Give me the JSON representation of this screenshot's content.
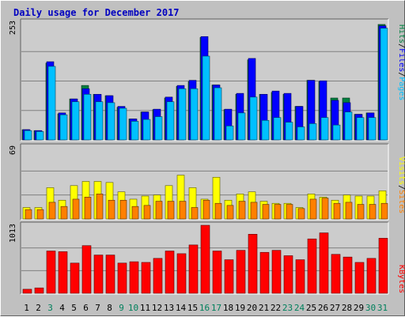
{
  "colors": {
    "background": "#c0c0c0",
    "panel": "#cccccc",
    "title": "#0000c0",
    "hits": "#008040",
    "files": "#0000ff",
    "pages": "#00c0ff",
    "visits": "#ffff00",
    "sites": "#ff8000",
    "kbytes": "#ff0000",
    "weekend_label": "#00805c",
    "weekday_label": "#000000"
  },
  "chart_data": [
    {
      "type": "bar",
      "title": "Daily usage for December 2017",
      "ymax_label": "253",
      "ylim": [
        0,
        253
      ],
      "legend": [
        "Pages",
        "Files",
        "Hits"
      ],
      "categories": [
        "1",
        "2",
        "3",
        "4",
        "5",
        "6",
        "7",
        "8",
        "9",
        "10",
        "11",
        "12",
        "13",
        "14",
        "15",
        "16",
        "17",
        "18",
        "19",
        "20",
        "21",
        "22",
        "23",
        "24",
        "25",
        "26",
        "27",
        "28",
        "29",
        "30",
        "31"
      ],
      "series": [
        {
          "name": "Hits",
          "values": [
            22,
            20,
            165,
            56,
            88,
            117,
            98,
            95,
            70,
            45,
            60,
            65,
            90,
            115,
            125,
            220,
            118,
            65,
            98,
            172,
            98,
            102,
            98,
            72,
            128,
            125,
            90,
            90,
            55,
            58,
            248
          ]
        },
        {
          "name": "Files",
          "values": [
            22,
            20,
            168,
            58,
            88,
            110,
            98,
            95,
            72,
            45,
            60,
            66,
            92,
            117,
            128,
            222,
            118,
            66,
            100,
            175,
            98,
            105,
            100,
            72,
            128,
            127,
            85,
            80,
            55,
            58,
            245
          ]
        },
        {
          "name": "Pages",
          "values": [
            20,
            18,
            158,
            54,
            82,
            98,
            82,
            80,
            68,
            40,
            44,
            50,
            82,
            110,
            110,
            180,
            112,
            30,
            58,
            92,
            42,
            48,
            38,
            28,
            35,
            48,
            32,
            60,
            48,
            48,
            240
          ]
        }
      ]
    },
    {
      "type": "bar",
      "ymax_label": "69",
      "ylim": [
        0,
        69
      ],
      "legend": [
        "Sites",
        "Visits"
      ],
      "categories": [
        "1",
        "2",
        "3",
        "4",
        "5",
        "6",
        "7",
        "8",
        "9",
        "10",
        "11",
        "12",
        "13",
        "14",
        "15",
        "16",
        "17",
        "18",
        "19",
        "20",
        "21",
        "22",
        "23",
        "24",
        "25",
        "26",
        "27",
        "28",
        "29",
        "30",
        "31"
      ],
      "series": [
        {
          "name": "Visits",
          "values": [
            11,
            11,
            30,
            18,
            32,
            36,
            36,
            35,
            26,
            19,
            22,
            23,
            32,
            42,
            30,
            19,
            40,
            18,
            24,
            26,
            17,
            15,
            15,
            11,
            24,
            21,
            18,
            23,
            22,
            22,
            27
          ]
        },
        {
          "name": "Sites",
          "values": [
            9,
            9,
            16,
            12,
            19,
            21,
            24,
            18,
            18,
            12,
            13,
            17,
            17,
            17,
            11,
            18,
            15,
            13,
            17,
            16,
            14,
            14,
            14,
            10,
            19,
            20,
            15,
            16,
            14,
            14,
            15
          ]
        }
      ]
    },
    {
      "type": "bar",
      "ymax_label": "1013",
      "ylim": [
        0,
        1013
      ],
      "legend": [
        "KBytes"
      ],
      "categories": [
        "1",
        "2",
        "3",
        "4",
        "5",
        "6",
        "7",
        "8",
        "9",
        "10",
        "11",
        "12",
        "13",
        "14",
        "15",
        "16",
        "17",
        "18",
        "19",
        "20",
        "21",
        "22",
        "23",
        "24",
        "25",
        "26",
        "27",
        "28",
        "29",
        "30",
        "31"
      ],
      "series": [
        {
          "name": "KBytes",
          "values": [
            60,
            80,
            630,
            620,
            450,
            710,
            570,
            570,
            450,
            470,
            460,
            520,
            630,
            590,
            720,
            1013,
            630,
            500,
            640,
            880,
            610,
            640,
            560,
            500,
            810,
            900,
            580,
            540,
            460,
            520,
            820
          ]
        }
      ]
    }
  ],
  "x_labels": [
    {
      "text": "1",
      "weekend": false
    },
    {
      "text": "2",
      "weekend": false
    },
    {
      "text": "3",
      "weekend": true
    },
    {
      "text": "4",
      "weekend": false
    },
    {
      "text": "5",
      "weekend": false
    },
    {
      "text": "6",
      "weekend": false
    },
    {
      "text": "7",
      "weekend": false
    },
    {
      "text": "8",
      "weekend": false
    },
    {
      "text": "9",
      "weekend": true
    },
    {
      "text": "10",
      "weekend": true
    },
    {
      "text": "11",
      "weekend": false
    },
    {
      "text": "12",
      "weekend": false
    },
    {
      "text": "13",
      "weekend": false
    },
    {
      "text": "14",
      "weekend": false
    },
    {
      "text": "15",
      "weekend": false
    },
    {
      "text": "16",
      "weekend": true
    },
    {
      "text": "17",
      "weekend": true
    },
    {
      "text": "18",
      "weekend": false
    },
    {
      "text": "19",
      "weekend": false
    },
    {
      "text": "20",
      "weekend": false
    },
    {
      "text": "21",
      "weekend": false
    },
    {
      "text": "22",
      "weekend": false
    },
    {
      "text": "23",
      "weekend": true
    },
    {
      "text": "24",
      "weekend": true
    },
    {
      "text": "25",
      "weekend": false
    },
    {
      "text": "26",
      "weekend": false
    },
    {
      "text": "27",
      "weekend": false
    },
    {
      "text": "28",
      "weekend": false
    },
    {
      "text": "29",
      "weekend": false
    },
    {
      "text": "30",
      "weekend": true
    },
    {
      "text": "31",
      "weekend": true
    }
  ]
}
